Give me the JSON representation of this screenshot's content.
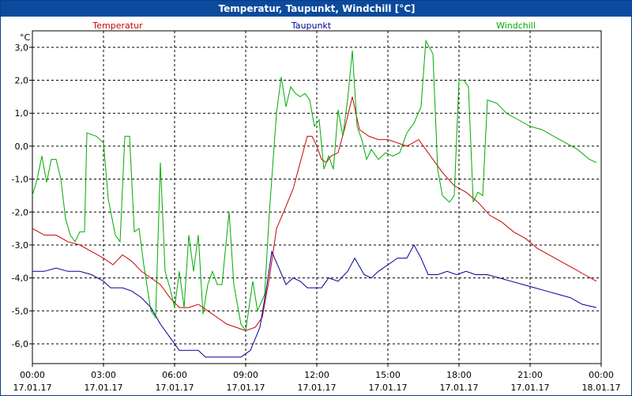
{
  "window": {
    "title": "Temperatur, Taupunkt, Windchill [°C]"
  },
  "chart_data": {
    "type": "line",
    "title": "Temperatur, Taupunkt, Windchill [°C]",
    "unit_label": "°C",
    "ylim": [
      -6.6,
      3.5
    ],
    "y_ticks": [
      3.0,
      2.0,
      1.0,
      0.0,
      -1.0,
      -2.0,
      -3.0,
      -4.0,
      -5.0,
      -6.0
    ],
    "y_tick_labels": [
      "3,0",
      "2,0",
      "1,0",
      "0,0",
      "-1,0",
      "-2,0",
      "-3,0",
      "-4,0",
      "-5,0",
      "-6,0"
    ],
    "xlim": [
      0,
      24
    ],
    "x_ticks": [
      {
        "h": 0,
        "time": "00:00",
        "date": "17.01.17"
      },
      {
        "h": 3,
        "time": "03:00",
        "date": "17.01.17"
      },
      {
        "h": 6,
        "time": "06:00",
        "date": "17.01.17"
      },
      {
        "h": 9,
        "time": "09:00",
        "date": "17.01.17"
      },
      {
        "h": 12,
        "time": "12:00",
        "date": "17.01.17"
      },
      {
        "h": 15,
        "time": "15:00",
        "date": "17.01.17"
      },
      {
        "h": 18,
        "time": "18:00",
        "date": "17.01.17"
      },
      {
        "h": 21,
        "time": "21:00",
        "date": "17.01.17"
      },
      {
        "h": 24,
        "time": "00:00",
        "date": "18.01.17"
      }
    ],
    "grid": true,
    "legend_position": "top",
    "series": [
      {
        "name": "Temperatur",
        "color": "#cc0000",
        "points": [
          [
            0,
            -2.5
          ],
          [
            0.5,
            -2.7
          ],
          [
            1,
            -2.7
          ],
          [
            1.5,
            -2.9
          ],
          [
            2,
            -3.0
          ],
          [
            2.5,
            -3.2
          ],
          [
            3,
            -3.4
          ],
          [
            3.4,
            -3.6
          ],
          [
            3.8,
            -3.3
          ],
          [
            4.2,
            -3.5
          ],
          [
            4.6,
            -3.8
          ],
          [
            5,
            -4.0
          ],
          [
            5.4,
            -4.2
          ],
          [
            5.8,
            -4.6
          ],
          [
            6.2,
            -4.9
          ],
          [
            6.6,
            -4.9
          ],
          [
            7,
            -4.8
          ],
          [
            7.4,
            -5.0
          ],
          [
            7.8,
            -5.2
          ],
          [
            8.2,
            -5.4
          ],
          [
            8.6,
            -5.5
          ],
          [
            9,
            -5.6
          ],
          [
            9.4,
            -5.5
          ],
          [
            9.7,
            -5.2
          ],
          [
            10,
            -4.0
          ],
          [
            10.3,
            -2.5
          ],
          [
            10.6,
            -2.0
          ],
          [
            11,
            -1.3
          ],
          [
            11.3,
            -0.5
          ],
          [
            11.6,
            0.3
          ],
          [
            11.8,
            0.3
          ],
          [
            12,
            0.0
          ],
          [
            12.2,
            -0.4
          ],
          [
            12.4,
            -0.5
          ],
          [
            12.6,
            -0.3
          ],
          [
            12.9,
            -0.2
          ],
          [
            13.2,
            0.6
          ],
          [
            13.5,
            1.5
          ],
          [
            13.8,
            0.5
          ],
          [
            14.2,
            0.3
          ],
          [
            14.6,
            0.2
          ],
          [
            15,
            0.2
          ],
          [
            15.4,
            0.1
          ],
          [
            15.8,
            0.0
          ],
          [
            16.3,
            0.2
          ],
          [
            16.8,
            -0.3
          ],
          [
            17.3,
            -0.8
          ],
          [
            17.8,
            -1.2
          ],
          [
            18.3,
            -1.4
          ],
          [
            18.8,
            -1.7
          ],
          [
            19.3,
            -2.1
          ],
          [
            19.8,
            -2.3
          ],
          [
            20.3,
            -2.6
          ],
          [
            20.8,
            -2.8
          ],
          [
            21.3,
            -3.1
          ],
          [
            21.8,
            -3.3
          ],
          [
            22.3,
            -3.5
          ],
          [
            22.8,
            -3.7
          ],
          [
            23.3,
            -3.9
          ],
          [
            23.8,
            -4.1
          ]
        ]
      },
      {
        "name": "Taupunkt",
        "color": "#000099",
        "points": [
          [
            0,
            -3.8
          ],
          [
            0.5,
            -3.8
          ],
          [
            1,
            -3.7
          ],
          [
            1.5,
            -3.8
          ],
          [
            2,
            -3.8
          ],
          [
            2.5,
            -3.9
          ],
          [
            3,
            -4.1
          ],
          [
            3.3,
            -4.3
          ],
          [
            3.8,
            -4.3
          ],
          [
            4.2,
            -4.4
          ],
          [
            4.6,
            -4.6
          ],
          [
            5,
            -4.9
          ],
          [
            5.4,
            -5.4
          ],
          [
            5.8,
            -5.8
          ],
          [
            6.2,
            -6.2
          ],
          [
            6.6,
            -6.2
          ],
          [
            7,
            -6.2
          ],
          [
            7.3,
            -6.4
          ],
          [
            7.8,
            -6.4
          ],
          [
            8.3,
            -6.4
          ],
          [
            8.8,
            -6.4
          ],
          [
            9.2,
            -6.2
          ],
          [
            9.6,
            -5.5
          ],
          [
            9.9,
            -4.2
          ],
          [
            10.1,
            -3.2
          ],
          [
            10.4,
            -3.7
          ],
          [
            10.7,
            -4.2
          ],
          [
            11,
            -4.0
          ],
          [
            11.3,
            -4.1
          ],
          [
            11.6,
            -4.3
          ],
          [
            11.9,
            -4.3
          ],
          [
            12.2,
            -4.3
          ],
          [
            12.5,
            -4.0
          ],
          [
            12.9,
            -4.1
          ],
          [
            13.3,
            -3.8
          ],
          [
            13.6,
            -3.4
          ],
          [
            14,
            -3.9
          ],
          [
            14.3,
            -4.0
          ],
          [
            14.6,
            -3.8
          ],
          [
            15,
            -3.6
          ],
          [
            15.4,
            -3.4
          ],
          [
            15.8,
            -3.4
          ],
          [
            16.1,
            -3.0
          ],
          [
            16.4,
            -3.4
          ],
          [
            16.7,
            -3.9
          ],
          [
            17.1,
            -3.9
          ],
          [
            17.5,
            -3.8
          ],
          [
            17.9,
            -3.9
          ],
          [
            18.3,
            -3.8
          ],
          [
            18.7,
            -3.9
          ],
          [
            19.2,
            -3.9
          ],
          [
            19.7,
            -4.0
          ],
          [
            20.2,
            -4.1
          ],
          [
            20.7,
            -4.2
          ],
          [
            21.2,
            -4.3
          ],
          [
            21.7,
            -4.4
          ],
          [
            22.2,
            -4.5
          ],
          [
            22.7,
            -4.6
          ],
          [
            23.2,
            -4.8
          ],
          [
            23.8,
            -4.9
          ]
        ]
      },
      {
        "name": "Windchill",
        "color": "#00aa00",
        "points": [
          [
            0,
            -1.5
          ],
          [
            0.2,
            -1.0
          ],
          [
            0.4,
            -0.3
          ],
          [
            0.6,
            -1.1
          ],
          [
            0.8,
            -0.4
          ],
          [
            1,
            -0.4
          ],
          [
            1.2,
            -1.0
          ],
          [
            1.4,
            -2.2
          ],
          [
            1.6,
            -2.7
          ],
          [
            1.8,
            -2.9
          ],
          [
            2.0,
            -2.6
          ],
          [
            2.2,
            -2.6
          ],
          [
            2.3,
            0.4
          ],
          [
            2.7,
            0.3
          ],
          [
            3.0,
            0.1
          ],
          [
            3.2,
            -1.6
          ],
          [
            3.5,
            -2.7
          ],
          [
            3.7,
            -2.9
          ],
          [
            3.9,
            0.3
          ],
          [
            4.1,
            0.3
          ],
          [
            4.3,
            -2.6
          ],
          [
            4.5,
            -2.5
          ],
          [
            4.7,
            -3.6
          ],
          [
            5.0,
            -5.0
          ],
          [
            5.2,
            -5.2
          ],
          [
            5.4,
            -0.5
          ],
          [
            5.6,
            -3.8
          ],
          [
            5.8,
            -4.3
          ],
          [
            6.0,
            -4.9
          ],
          [
            6.2,
            -3.8
          ],
          [
            6.4,
            -4.9
          ],
          [
            6.6,
            -2.7
          ],
          [
            6.8,
            -3.8
          ],
          [
            7.0,
            -2.7
          ],
          [
            7.2,
            -5.1
          ],
          [
            7.4,
            -4.2
          ],
          [
            7.6,
            -3.8
          ],
          [
            7.8,
            -4.2
          ],
          [
            8.0,
            -4.2
          ],
          [
            8.3,
            -2.0
          ],
          [
            8.5,
            -4.2
          ],
          [
            8.8,
            -5.4
          ],
          [
            9.0,
            -5.6
          ],
          [
            9.3,
            -4.1
          ],
          [
            9.5,
            -5.0
          ],
          [
            9.8,
            -4.5
          ],
          [
            10.0,
            -2.0
          ],
          [
            10.3,
            1.0
          ],
          [
            10.5,
            2.1
          ],
          [
            10.7,
            1.2
          ],
          [
            10.9,
            1.8
          ],
          [
            11.1,
            1.6
          ],
          [
            11.3,
            1.5
          ],
          [
            11.5,
            1.6
          ],
          [
            11.7,
            1.4
          ],
          [
            11.9,
            0.6
          ],
          [
            12.1,
            0.8
          ],
          [
            12.3,
            -0.7
          ],
          [
            12.5,
            -0.3
          ],
          [
            12.7,
            -0.7
          ],
          [
            12.9,
            1.1
          ],
          [
            13.1,
            0.3
          ],
          [
            13.3,
            1.4
          ],
          [
            13.5,
            2.9
          ],
          [
            13.7,
            0.6
          ],
          [
            13.9,
            0.2
          ],
          [
            14.1,
            -0.4
          ],
          [
            14.3,
            -0.1
          ],
          [
            14.6,
            -0.4
          ],
          [
            14.9,
            -0.2
          ],
          [
            15.2,
            -0.3
          ],
          [
            15.5,
            -0.2
          ],
          [
            15.8,
            0.4
          ],
          [
            16.1,
            0.7
          ],
          [
            16.4,
            1.2
          ],
          [
            16.6,
            3.2
          ],
          [
            16.9,
            2.8
          ],
          [
            17.1,
            -0.7
          ],
          [
            17.3,
            -1.5
          ],
          [
            17.6,
            -1.7
          ],
          [
            17.8,
            -1.5
          ],
          [
            18.0,
            2.0
          ],
          [
            18.2,
            2.0
          ],
          [
            18.4,
            1.8
          ],
          [
            18.6,
            -1.7
          ],
          [
            18.8,
            -1.4
          ],
          [
            19.0,
            -1.5
          ],
          [
            19.2,
            1.4
          ],
          [
            19.6,
            1.3
          ],
          [
            20.0,
            1.0
          ],
          [
            20.5,
            0.8
          ],
          [
            21.0,
            0.6
          ],
          [
            21.5,
            0.5
          ],
          [
            22.0,
            0.3
          ],
          [
            22.5,
            0.1
          ],
          [
            23.0,
            -0.1
          ],
          [
            23.5,
            -0.4
          ],
          [
            23.8,
            -0.5
          ]
        ]
      }
    ]
  }
}
